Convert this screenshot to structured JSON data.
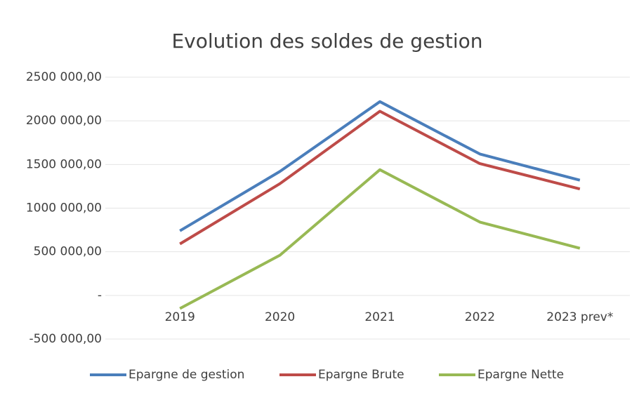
{
  "chart_data": {
    "type": "line",
    "title": "Evolution des soldes de gestion",
    "categories": [
      "2019",
      "2020",
      "2021",
      "2022",
      "2023 prev*"
    ],
    "series": [
      {
        "name": "Epargne de gestion",
        "color": "#4a7ebb",
        "values": [
          740000,
          1420000,
          2220000,
          1620000,
          1320000
        ]
      },
      {
        "name": "Epargne Brute",
        "color": "#be4b48",
        "values": [
          590000,
          1280000,
          2110000,
          1510000,
          1220000
        ]
      },
      {
        "name": "Epargne Nette",
        "color": "#98b954",
        "values": [
          -150000,
          460000,
          1440000,
          840000,
          540000
        ]
      }
    ],
    "ylim": [
      -500000,
      2500000
    ],
    "yticks": [
      {
        "value": -500000,
        "label": "-500 000,00"
      },
      {
        "value": 0,
        "label": "-"
      },
      {
        "value": 500000,
        "label": "500 000,00"
      },
      {
        "value": 1000000,
        "label": "1000 000,00"
      },
      {
        "value": 1500000,
        "label": "1500 000,00"
      },
      {
        "value": 2000000,
        "label": "2000 000,00"
      },
      {
        "value": 2500000,
        "label": "2500 000,00"
      }
    ],
    "grid": true,
    "legend": "bottom"
  }
}
